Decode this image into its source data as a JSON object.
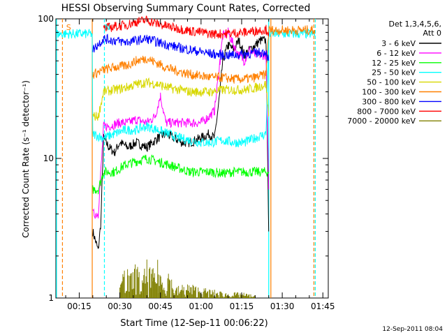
{
  "chart_data": {
    "type": "line",
    "title": "HESSI Observing Summary Count Rates, Corrected",
    "xlabel": "Start Time (12-Sep-11 00:06:22)",
    "ylabel": "Corrected Count Rate (s⁻¹ detector⁻¹)",
    "yscale": "log",
    "ylim": [
      1,
      100
    ],
    "xlim_minutes": [
      6.37,
      107
    ],
    "x_ticks": [
      {
        "m": 15,
        "label": "00:15"
      },
      {
        "m": 30,
        "label": "00:30"
      },
      {
        "m": 45,
        "label": "00:45"
      },
      {
        "m": 60,
        "label": "01:00"
      },
      {
        "m": 75,
        "label": "01:15"
      },
      {
        "m": 90,
        "label": "01:30"
      },
      {
        "m": 105,
        "label": "01:45"
      }
    ],
    "y_ticks": [
      {
        "v": 1,
        "label": "1"
      },
      {
        "v": 10,
        "label": "10"
      },
      {
        "v": 100,
        "label": "100"
      }
    ],
    "legend": {
      "placement": "right",
      "header": [
        "Det 1,3,4,5,6,",
        "Att 0"
      ],
      "entries": [
        {
          "label": "3 - 6 keV",
          "color": "#000000"
        },
        {
          "label": "6 - 12 keV",
          "color": "#ff00ff"
        },
        {
          "label": "12 - 25 keV",
          "color": "#00ff00"
        },
        {
          "label": "25 - 50 keV",
          "color": "#00ffff"
        },
        {
          "label": "50 - 100 keV",
          "color": "#d8d800"
        },
        {
          "label": "100 - 300 keV",
          "color": "#ff8000"
        },
        {
          "label": "300 - 800 keV",
          "color": "#0000ff"
        },
        {
          "label": "800 - 7000 keV",
          "color": "#ff0000"
        },
        {
          "label": "7000 - 20000 keV",
          "color": "#808000"
        }
      ]
    },
    "annotations": [
      {
        "text": "S",
        "m": 9.4,
        "color": "#ff8000"
      },
      {
        "text": "N",
        "m": 23.6,
        "color": "#00ffff"
      }
    ],
    "markers": [
      {
        "m": 8.8,
        "color": "#ff8000",
        "style": "dashed"
      },
      {
        "m": 24.3,
        "color": "#00ffff",
        "style": "dashed"
      },
      {
        "m": 19.8,
        "color": "#ff8000",
        "style": "solid"
      },
      {
        "m": 85.8,
        "color": "#ff8000",
        "style": "solid"
      },
      {
        "m": 85.0,
        "color": "#00ffff",
        "style": "solid"
      },
      {
        "m": 101.7,
        "color": "#ff8000",
        "style": "dashed"
      },
      {
        "m": 102.2,
        "color": "#00ffff",
        "style": "dashed"
      },
      {
        "m": 6.6,
        "color": "#00ffff",
        "style": "solid"
      }
    ],
    "series": [
      {
        "name": "3 - 6 keV",
        "color": "#000000",
        "points": [
          [
            20,
            3.0
          ],
          [
            22,
            2.2
          ],
          [
            23,
            3.5
          ],
          [
            24,
            14
          ],
          [
            26,
            12
          ],
          [
            28,
            11
          ],
          [
            30,
            13
          ],
          [
            33,
            12
          ],
          [
            36,
            13
          ],
          [
            40,
            12
          ],
          [
            44,
            14
          ],
          [
            47,
            15
          ],
          [
            50,
            14
          ],
          [
            53,
            13
          ],
          [
            56,
            13
          ],
          [
            60,
            14
          ],
          [
            63,
            15
          ],
          [
            65,
            14
          ],
          [
            67,
            30
          ],
          [
            68,
            50
          ],
          [
            70,
            65
          ],
          [
            72,
            60
          ],
          [
            74,
            70
          ],
          [
            76,
            55
          ],
          [
            78,
            60
          ],
          [
            80,
            65
          ],
          [
            82,
            70
          ],
          [
            84,
            70
          ],
          [
            85,
            3
          ]
        ]
      },
      {
        "name": "6 - 12 keV",
        "color": "#ff00ff",
        "points": [
          [
            20,
            4
          ],
          [
            22,
            4
          ],
          [
            24,
            17
          ],
          [
            26,
            17
          ],
          [
            30,
            18
          ],
          [
            33,
            18
          ],
          [
            36,
            19
          ],
          [
            40,
            18
          ],
          [
            43,
            20
          ],
          [
            45,
            28
          ],
          [
            47,
            18
          ],
          [
            50,
            18
          ],
          [
            55,
            18
          ],
          [
            60,
            18
          ],
          [
            63,
            20
          ],
          [
            65,
            22
          ],
          [
            67,
            50
          ],
          [
            68,
            75
          ],
          [
            70,
            80
          ],
          [
            72,
            65
          ],
          [
            74,
            55
          ],
          [
            76,
            50
          ],
          [
            78,
            60
          ],
          [
            80,
            55
          ],
          [
            82,
            55
          ],
          [
            84,
            55
          ],
          [
            85,
            6
          ]
        ]
      },
      {
        "name": "12 - 25 keV",
        "color": "#00ff00",
        "points": [
          [
            20,
            6
          ],
          [
            22,
            6
          ],
          [
            24,
            8
          ],
          [
            28,
            8
          ],
          [
            32,
            9
          ],
          [
            36,
            9.5
          ],
          [
            40,
            10
          ],
          [
            44,
            9.5
          ],
          [
            48,
            9
          ],
          [
            52,
            8.5
          ],
          [
            56,
            8
          ],
          [
            60,
            8
          ],
          [
            64,
            8
          ],
          [
            68,
            7.8
          ],
          [
            72,
            8
          ],
          [
            76,
            8
          ],
          [
            80,
            8
          ],
          [
            84,
            8
          ],
          [
            85,
            8
          ]
        ]
      },
      {
        "name": "25 - 50 keV",
        "color": "#00ffff",
        "points": [
          [
            6.6,
            78
          ],
          [
            19.8,
            78
          ],
          [
            20,
            15
          ],
          [
            24,
            14
          ],
          [
            28,
            15
          ],
          [
            32,
            16
          ],
          [
            36,
            16
          ],
          [
            40,
            17
          ],
          [
            44,
            16
          ],
          [
            48,
            15
          ],
          [
            52,
            14
          ],
          [
            56,
            13.5
          ],
          [
            60,
            13
          ],
          [
            64,
            13
          ],
          [
            68,
            13.5
          ],
          [
            72,
            13
          ],
          [
            76,
            13
          ],
          [
            80,
            14
          ],
          [
            84,
            15
          ],
          [
            85,
            78
          ],
          [
            102,
            78
          ]
        ]
      },
      {
        "name": "50 - 100 keV",
        "color": "#d8d800",
        "points": [
          [
            20,
            20
          ],
          [
            22,
            20
          ],
          [
            24,
            30
          ],
          [
            28,
            31
          ],
          [
            32,
            32
          ],
          [
            36,
            34
          ],
          [
            40,
            35
          ],
          [
            44,
            34
          ],
          [
            48,
            32
          ],
          [
            52,
            31
          ],
          [
            56,
            30
          ],
          [
            60,
            30
          ],
          [
            64,
            30
          ],
          [
            68,
            31
          ],
          [
            72,
            31
          ],
          [
            76,
            31
          ],
          [
            80,
            32
          ],
          [
            84,
            34
          ],
          [
            85,
            20
          ]
        ]
      },
      {
        "name": "100 - 300 keV",
        "color": "#ff8000",
        "points": [
          [
            20,
            40
          ],
          [
            24,
            43
          ],
          [
            28,
            45
          ],
          [
            32,
            46
          ],
          [
            36,
            50
          ],
          [
            40,
            52
          ],
          [
            44,
            48
          ],
          [
            48,
            44
          ],
          [
            52,
            42
          ],
          [
            56,
            40
          ],
          [
            60,
            39
          ],
          [
            64,
            38
          ],
          [
            68,
            38
          ],
          [
            72,
            37
          ],
          [
            76,
            37
          ],
          [
            80,
            38
          ],
          [
            84,
            40
          ],
          [
            85,
            83
          ],
          [
            102,
            83
          ]
        ]
      },
      {
        "name": "300 - 800 keV",
        "color": "#0000ff",
        "points": [
          [
            20,
            60
          ],
          [
            24,
            72
          ],
          [
            28,
            70
          ],
          [
            32,
            68
          ],
          [
            36,
            70
          ],
          [
            40,
            72
          ],
          [
            44,
            68
          ],
          [
            48,
            65
          ],
          [
            52,
            62
          ],
          [
            56,
            60
          ],
          [
            60,
            58
          ],
          [
            64,
            56
          ],
          [
            68,
            55
          ],
          [
            72,
            55
          ],
          [
            76,
            56
          ],
          [
            80,
            57
          ],
          [
            84,
            58
          ],
          [
            85,
            50
          ]
        ]
      },
      {
        "name": "800 - 7000 keV",
        "color": "#ff0000",
        "points": [
          [
            24,
            85
          ],
          [
            28,
            88
          ],
          [
            32,
            90
          ],
          [
            36,
            95
          ],
          [
            40,
            98
          ],
          [
            44,
            92
          ],
          [
            48,
            88
          ],
          [
            52,
            85
          ],
          [
            56,
            82
          ],
          [
            60,
            80
          ],
          [
            64,
            78
          ],
          [
            68,
            78
          ],
          [
            72,
            79
          ],
          [
            76,
            80
          ],
          [
            80,
            82
          ],
          [
            84,
            84
          ],
          [
            85,
            80
          ]
        ]
      },
      {
        "name": "7000 - 20000 keV",
        "color": "#808000",
        "points": [
          [
            30,
            1.2
          ],
          [
            32,
            1.8
          ],
          [
            34,
            1.5
          ],
          [
            36,
            1.9
          ],
          [
            38,
            1.3
          ],
          [
            40,
            1.9
          ],
          [
            42,
            1.6
          ],
          [
            44,
            1.9
          ],
          [
            46,
            1.4
          ],
          [
            48,
            1.7
          ],
          [
            50,
            1.2
          ],
          [
            55,
            1.3
          ],
          [
            60,
            1.2
          ],
          [
            65,
            1.15
          ],
          [
            70,
            1.1
          ],
          [
            75,
            1.1
          ],
          [
            80,
            1.05
          ]
        ]
      }
    ]
  },
  "footer": {
    "timestamp": "12-Sep-2011 08:04"
  }
}
